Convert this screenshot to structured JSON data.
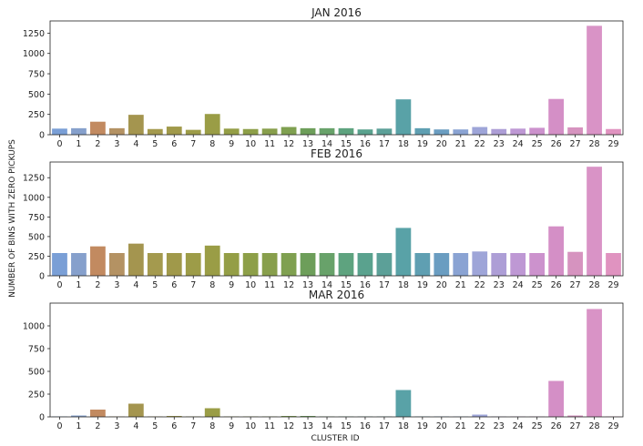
{
  "chart_data": [
    {
      "type": "bar",
      "title": "JAN 2016",
      "ylabel": "NUMBER OF BINS WITH ZERO PICKUPS",
      "xlabel": "",
      "categories": [
        "0",
        "1",
        "2",
        "3",
        "4",
        "5",
        "6",
        "7",
        "8",
        "9",
        "10",
        "11",
        "12",
        "13",
        "14",
        "15",
        "16",
        "17",
        "18",
        "19",
        "20",
        "21",
        "22",
        "23",
        "24",
        "25",
        "26",
        "27",
        "28",
        "29"
      ],
      "values": [
        75,
        80,
        160,
        80,
        245,
        70,
        100,
        60,
        255,
        75,
        70,
        75,
        95,
        80,
        80,
        80,
        65,
        75,
        435,
        80,
        65,
        65,
        95,
        70,
        75,
        85,
        440,
        90,
        1340,
        70
      ],
      "yticks": [
        0,
        250,
        500,
        750,
        1000,
        1250
      ],
      "ylim": [
        0,
        1400
      ]
    },
    {
      "type": "bar",
      "title": "FEB 2016",
      "ylabel": "",
      "xlabel": "",
      "categories": [
        "0",
        "1",
        "2",
        "3",
        "4",
        "5",
        "6",
        "7",
        "8",
        "9",
        "10",
        "11",
        "12",
        "13",
        "14",
        "15",
        "16",
        "17",
        "18",
        "19",
        "20",
        "21",
        "22",
        "23",
        "24",
        "25",
        "26",
        "27",
        "28",
        "29"
      ],
      "values": [
        290,
        290,
        375,
        290,
        410,
        290,
        290,
        290,
        385,
        290,
        290,
        290,
        290,
        290,
        290,
        290,
        290,
        290,
        610,
        290,
        290,
        290,
        310,
        290,
        290,
        290,
        630,
        305,
        1390,
        290
      ],
      "yticks": [
        0,
        250,
        500,
        750,
        1000,
        1250
      ],
      "ylim": [
        0,
        1450
      ]
    },
    {
      "type": "bar",
      "title": "MAR 2016",
      "ylabel": "",
      "xlabel": "CLUSTER ID",
      "categories": [
        "0",
        "1",
        "2",
        "3",
        "4",
        "5",
        "6",
        "7",
        "8",
        "9",
        "10",
        "11",
        "12",
        "13",
        "14",
        "15",
        "16",
        "17",
        "18",
        "19",
        "20",
        "21",
        "22",
        "23",
        "24",
        "25",
        "26",
        "27",
        "28",
        "29"
      ],
      "values": [
        5,
        15,
        80,
        5,
        145,
        5,
        10,
        5,
        95,
        5,
        5,
        5,
        10,
        10,
        5,
        5,
        5,
        5,
        295,
        5,
        5,
        5,
        25,
        5,
        5,
        5,
        395,
        15,
        1185,
        5
      ],
      "yticks": [
        0,
        250,
        500,
        750,
        1000
      ],
      "ylim": [
        0,
        1250
      ]
    }
  ],
  "palette": [
    "#7a9fd6",
    "#86a0cc",
    "#c28a60",
    "#b49263",
    "#a4954f",
    "#a49a4e",
    "#a0994a",
    "#9d9c48",
    "#9a9d46",
    "#949e46",
    "#8d9f48",
    "#889f4c",
    "#7fa050",
    "#6d9e5a",
    "#68a26a",
    "#5ea37f",
    "#5aa28e",
    "#5ca098",
    "#59a2a7",
    "#5f9fb2",
    "#6a9dc1",
    "#8aa3d3",
    "#9ea5d8",
    "#ad9ed6",
    "#be98d4",
    "#cc92cd",
    "#d48fc6",
    "#d693bf",
    "#d993c6",
    "#e093c0"
  ]
}
